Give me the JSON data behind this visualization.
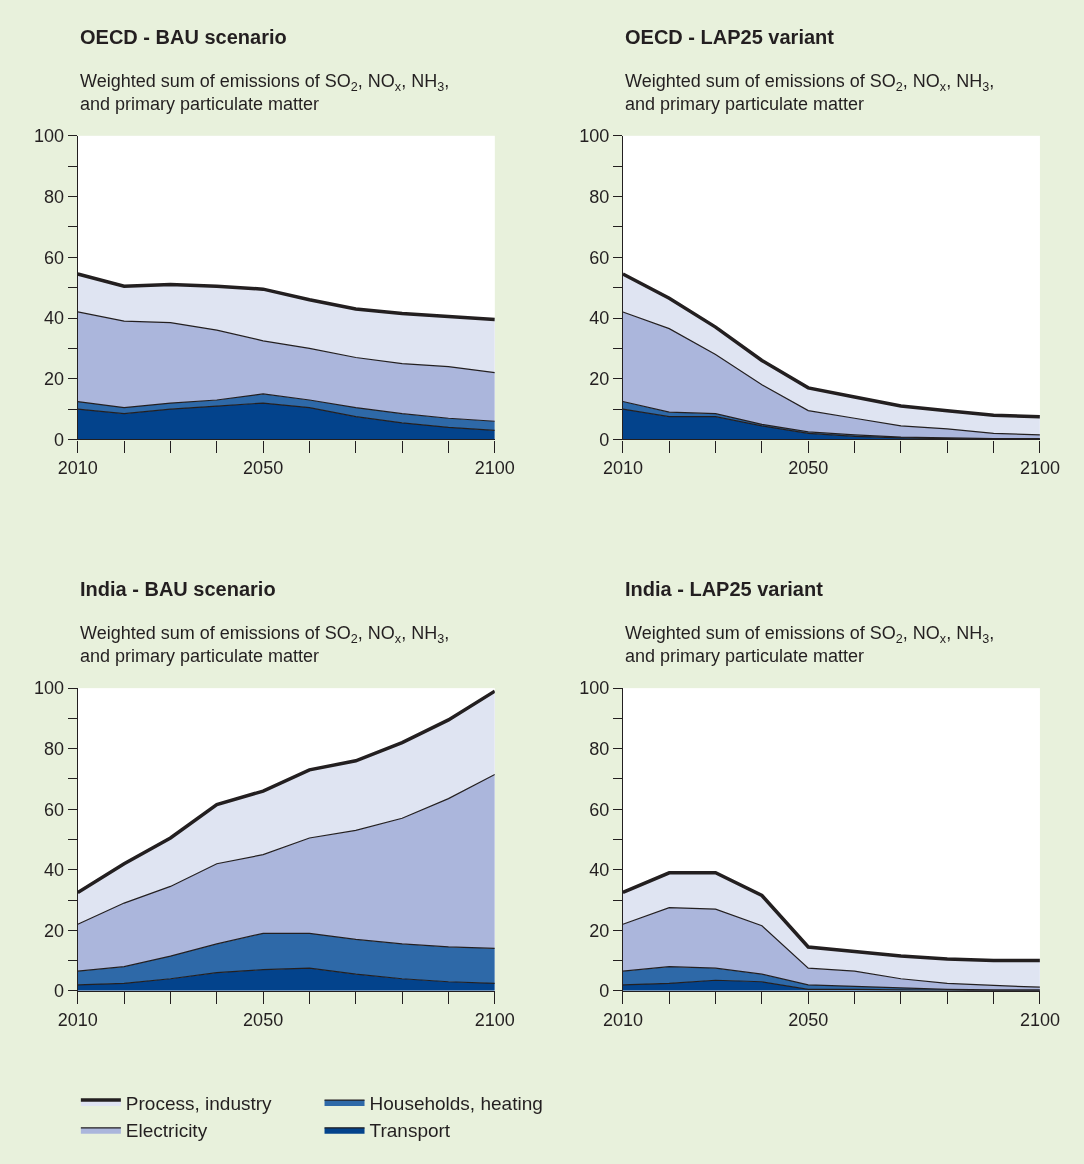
{
  "chart_data": [
    {
      "type": "area",
      "stacked": true,
      "title": "OECD - BAU scenario",
      "subtitle": "Weighted sum of emissions of SO$_{2}$, NO$_{x}$, NH$_{3}$,\nand primary particulate matter",
      "x": [
        2010,
        2020,
        2030,
        2040,
        2050,
        2060,
        2070,
        2080,
        2090,
        2100
      ],
      "xlim": [
        2010,
        2100
      ],
      "xticks": [
        2010,
        {
          "value": 2020,
          "label": null
        },
        {
          "value": 2030,
          "label": null
        },
        {
          "value": 2040,
          "label": null
        },
        2050,
        {
          "value": 2060,
          "label": null
        },
        {
          "value": 2070,
          "label": null
        },
        {
          "value": 2080,
          "label": null
        },
        {
          "value": 2090,
          "label": null
        },
        2100
      ],
      "ylim": [
        0,
        100
      ],
      "yticks": [
        0,
        {
          "value": 10,
          "label": null
        },
        20,
        {
          "value": 30,
          "label": null
        },
        40,
        {
          "value": 50,
          "label": null
        },
        60,
        {
          "value": 70,
          "label": null
        },
        80,
        {
          "value": 90,
          "label": null
        },
        100
      ],
      "grid": false,
      "legend": "bottom",
      "series": [
        {
          "name": "Transport",
          "color": "#03438c",
          "values": [
            10,
            8.5,
            10,
            11,
            12,
            10.5,
            7.5,
            5.5,
            4,
            3
          ]
        },
        {
          "name": "Households, heating",
          "color": "#2e69a8",
          "values": [
            2.5,
            2,
            2,
            2,
            3,
            2.5,
            3,
            3,
            3,
            3
          ]
        },
        {
          "name": "Electricity",
          "color": "#abb6dc",
          "values": [
            29.5,
            28.5,
            26.5,
            23,
            17.5,
            17,
            16.5,
            16.5,
            17,
            16
          ]
        },
        {
          "name": "Process, industry",
          "color": "#dfe4f2",
          "values": [
            12.5,
            11.5,
            12.5,
            14.5,
            17,
            16,
            16,
            16.5,
            16.5,
            17.5
          ]
        }
      ]
    },
    {
      "type": "area",
      "stacked": true,
      "title": "OECD - LAP25 variant",
      "subtitle": "Weighted sum of emissions of SO$_{2}$, NO$_{x}$, NH$_{3}$,\nand primary particulate matter",
      "x": [
        2010,
        2020,
        2030,
        2040,
        2050,
        2060,
        2070,
        2080,
        2090,
        2100
      ],
      "xlim": [
        2010,
        2100
      ],
      "xticks": [
        2010,
        {
          "value": 2020,
          "label": null
        },
        {
          "value": 2030,
          "label": null
        },
        {
          "value": 2040,
          "label": null
        },
        2050,
        {
          "value": 2060,
          "label": null
        },
        {
          "value": 2070,
          "label": null
        },
        {
          "value": 2080,
          "label": null
        },
        {
          "value": 2090,
          "label": null
        },
        2100
      ],
      "ylim": [
        0,
        100
      ],
      "yticks": [
        0,
        {
          "value": 10,
          "label": null
        },
        20,
        {
          "value": 30,
          "label": null
        },
        40,
        {
          "value": 50,
          "label": null
        },
        60,
        {
          "value": 70,
          "label": null
        },
        80,
        {
          "value": 90,
          "label": null
        },
        100
      ],
      "grid": false,
      "series": [
        {
          "color": "#03438c",
          "values": [
            10,
            7.5,
            7.5,
            4.5,
            2,
            1,
            0.5,
            0.3,
            0.2,
            0.2
          ]
        },
        {
          "color": "#2e69a8",
          "values": [
            2.5,
            1.5,
            1,
            0.5,
            0.5,
            0.5,
            0.3,
            0.2,
            0.1,
            0.1
          ]
        },
        {
          "color": "#abb6dc",
          "values": [
            29.5,
            27.5,
            19.5,
            13,
            7,
            5.5,
            3.7,
            3,
            1.7,
            1.2
          ]
        },
        {
          "color": "#dfe4f2",
          "values": [
            12.5,
            10,
            9,
            8,
            7.5,
            7,
            6.5,
            6,
            6,
            6
          ]
        }
      ]
    },
    {
      "type": "area",
      "stacked": true,
      "title": "India - BAU scenario",
      "subtitle": "Weighted sum of emissions of SO$_{2}$, NO$_{x}$, NH$_{3}$,\nand primary particulate matter",
      "x": [
        2010,
        2020,
        2030,
        2040,
        2050,
        2060,
        2070,
        2080,
        2090,
        2100
      ],
      "xlim": [
        2010,
        2100
      ],
      "xticks": [
        2010,
        {
          "value": 2020,
          "label": null
        },
        {
          "value": 2030,
          "label": null
        },
        {
          "value": 2040,
          "label": null
        },
        2050,
        {
          "value": 2060,
          "label": null
        },
        {
          "value": 2070,
          "label": null
        },
        {
          "value": 2080,
          "label": null
        },
        {
          "value": 2090,
          "label": null
        },
        2100
      ],
      "ylim": [
        0,
        100
      ],
      "yticks": [
        0,
        {
          "value": 10,
          "label": null
        },
        20,
        {
          "value": 30,
          "label": null
        },
        40,
        {
          "value": 50,
          "label": null
        },
        60,
        {
          "value": 70,
          "label": null
        },
        80,
        {
          "value": 90,
          "label": null
        },
        100
      ],
      "grid": false,
      "series": [
        {
          "color": "#03438c",
          "values": [
            2,
            2.5,
            4,
            6,
            7,
            7.5,
            5.5,
            4,
            3,
            2.5
          ]
        },
        {
          "color": "#2e69a8",
          "values": [
            4.5,
            5.5,
            7.5,
            9.5,
            12,
            11.5,
            11.5,
            11.5,
            11.5,
            11.5
          ]
        },
        {
          "color": "#abb6dc",
          "values": [
            15.5,
            21,
            23,
            26.5,
            26,
            31.5,
            36,
            41.5,
            49,
            57.5
          ]
        },
        {
          "color": "#dfe4f2",
          "values": [
            10.5,
            13,
            16,
            19.5,
            21,
            22.5,
            23,
            25,
            26,
            27.5
          ]
        }
      ]
    },
    {
      "type": "area",
      "stacked": true,
      "title": "India - LAP25 variant",
      "subtitle": "Weighted sum of emissions of SO$_{2}$, NO$_{x}$, NH$_{3}$,\nand primary particulate matter",
      "x": [
        2010,
        2020,
        2030,
        2040,
        2050,
        2060,
        2070,
        2080,
        2090,
        2100
      ],
      "xlim": [
        2010,
        2100
      ],
      "xticks": [
        2010,
        {
          "value": 2020,
          "label": null
        },
        {
          "value": 2030,
          "label": null
        },
        {
          "value": 2040,
          "label": null
        },
        2050,
        {
          "value": 2060,
          "label": null
        },
        {
          "value": 2070,
          "label": null
        },
        {
          "value": 2080,
          "label": null
        },
        {
          "value": 2090,
          "label": null
        },
        2100
      ],
      "ylim": [
        0,
        100
      ],
      "yticks": [
        0,
        {
          "value": 10,
          "label": null
        },
        20,
        {
          "value": 30,
          "label": null
        },
        40,
        {
          "value": 50,
          "label": null
        },
        60,
        {
          "value": 70,
          "label": null
        },
        80,
        {
          "value": 90,
          "label": null
        },
        100
      ],
      "grid": false,
      "series": [
        {
          "color": "#03438c",
          "values": [
            2,
            2.5,
            3.5,
            3,
            0.5,
            0.5,
            0.3,
            0.2,
            0.1,
            0.1
          ]
        },
        {
          "color": "#2e69a8",
          "values": [
            4.5,
            5.5,
            4,
            2.5,
            1.5,
            1,
            0.7,
            0.3,
            0.2,
            0.2
          ]
        },
        {
          "color": "#abb6dc",
          "values": [
            15.5,
            19.5,
            19.5,
            16,
            5.5,
            5,
            3,
            2,
            1.5,
            0.9
          ]
        },
        {
          "color": "#dfe4f2",
          "values": [
            10.5,
            11.5,
            12,
            10,
            7,
            6.5,
            7.5,
            8,
            8.2,
            8.8
          ]
        }
      ]
    }
  ]
}
